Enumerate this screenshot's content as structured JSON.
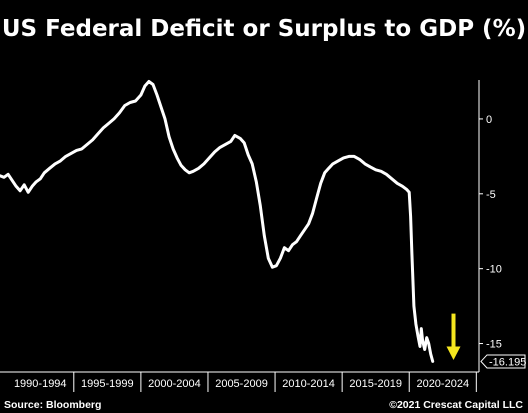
{
  "title": "US Federal Deficit or Surplus to GDP (%)",
  "source": "Source: Bloomberg",
  "copyright": "©2021 Crescat Capital LLC",
  "last_value_label": "-16.195",
  "colors": {
    "background": "#000000",
    "line": "#ffffff",
    "arrow": "#f5e61e",
    "text": "#ffffff"
  },
  "chart_data": {
    "type": "line",
    "title": "US Federal Deficit or Surplus to GDP (%)",
    "xlabel": "",
    "ylabel": "",
    "grid": false,
    "legend": "none",
    "xlim": [
      1989.5,
      2025.2
    ],
    "ylim": [
      -16.9,
      2.6
    ],
    "y_ticks": [
      0,
      -5,
      -10,
      -15
    ],
    "y_tick_labels": [
      "0",
      "-5",
      "-10",
      "-15"
    ],
    "x_categories": [
      "1990-1994",
      "1995-1999",
      "2000-2004",
      "2005-2009",
      "2010-2014",
      "2015-2019",
      "2020-2024"
    ],
    "annotations": [
      {
        "type": "arrow",
        "x": 2023.3,
        "direction": "down",
        "color": "#f5e61e"
      },
      {
        "type": "value-tag",
        "text": "-16.195",
        "y": -16.195
      }
    ],
    "series": [
      {
        "color": "#ffffff",
        "points": [
          [
            1989.5,
            -3.8
          ],
          [
            1989.8,
            -3.9
          ],
          [
            1990.1,
            -3.7
          ],
          [
            1990.4,
            -4.1
          ],
          [
            1990.7,
            -4.5
          ],
          [
            1991.0,
            -4.8
          ],
          [
            1991.3,
            -4.4
          ],
          [
            1991.6,
            -4.9
          ],
          [
            1991.9,
            -4.5
          ],
          [
            1992.2,
            -4.2
          ],
          [
            1992.5,
            -4.0
          ],
          [
            1992.8,
            -3.6
          ],
          [
            1993.2,
            -3.3
          ],
          [
            1993.6,
            -3.0
          ],
          [
            1994.0,
            -2.8
          ],
          [
            1994.4,
            -2.5
          ],
          [
            1994.8,
            -2.3
          ],
          [
            1995.2,
            -2.1
          ],
          [
            1995.6,
            -2.0
          ],
          [
            1996.0,
            -1.7
          ],
          [
            1996.4,
            -1.4
          ],
          [
            1996.8,
            -1.0
          ],
          [
            1997.2,
            -0.6
          ],
          [
            1997.6,
            -0.3
          ],
          [
            1998.0,
            0.0
          ],
          [
            1998.4,
            0.4
          ],
          [
            1998.8,
            0.9
          ],
          [
            1999.2,
            1.1
          ],
          [
            1999.6,
            1.2
          ],
          [
            2000.0,
            1.6
          ],
          [
            2000.3,
            2.2
          ],
          [
            2000.6,
            2.5
          ],
          [
            2000.9,
            2.3
          ],
          [
            2001.2,
            1.6
          ],
          [
            2001.5,
            0.8
          ],
          [
            2001.8,
            0.0
          ],
          [
            2002.1,
            -1.2
          ],
          [
            2002.4,
            -2.0
          ],
          [
            2002.7,
            -2.6
          ],
          [
            2003.0,
            -3.1
          ],
          [
            2003.3,
            -3.4
          ],
          [
            2003.6,
            -3.6
          ],
          [
            2003.9,
            -3.5
          ],
          [
            2004.3,
            -3.3
          ],
          [
            2004.7,
            -3.0
          ],
          [
            2005.1,
            -2.6
          ],
          [
            2005.5,
            -2.2
          ],
          [
            2005.9,
            -1.9
          ],
          [
            2006.3,
            -1.7
          ],
          [
            2006.7,
            -1.5
          ],
          [
            2007.0,
            -1.1
          ],
          [
            2007.4,
            -1.3
          ],
          [
            2007.7,
            -1.6
          ],
          [
            2008.0,
            -2.4
          ],
          [
            2008.3,
            -3.0
          ],
          [
            2008.6,
            -4.2
          ],
          [
            2008.9,
            -5.8
          ],
          [
            2009.2,
            -7.8
          ],
          [
            2009.5,
            -9.3
          ],
          [
            2009.8,
            -9.9
          ],
          [
            2010.1,
            -9.8
          ],
          [
            2010.4,
            -9.3
          ],
          [
            2010.7,
            -8.6
          ],
          [
            2011.0,
            -8.8
          ],
          [
            2011.3,
            -8.4
          ],
          [
            2011.6,
            -8.2
          ],
          [
            2011.9,
            -7.8
          ],
          [
            2012.2,
            -7.4
          ],
          [
            2012.5,
            -7.0
          ],
          [
            2012.8,
            -6.3
          ],
          [
            2013.1,
            -5.3
          ],
          [
            2013.4,
            -4.3
          ],
          [
            2013.7,
            -3.6
          ],
          [
            2014.0,
            -3.3
          ],
          [
            2014.3,
            -3.0
          ],
          [
            2014.7,
            -2.8
          ],
          [
            2015.1,
            -2.6
          ],
          [
            2015.5,
            -2.5
          ],
          [
            2015.9,
            -2.5
          ],
          [
            2016.3,
            -2.7
          ],
          [
            2016.7,
            -3.0
          ],
          [
            2017.1,
            -3.2
          ],
          [
            2017.5,
            -3.4
          ],
          [
            2017.9,
            -3.5
          ],
          [
            2018.3,
            -3.7
          ],
          [
            2018.7,
            -4.0
          ],
          [
            2019.1,
            -4.3
          ],
          [
            2019.5,
            -4.5
          ],
          [
            2019.8,
            -4.7
          ],
          [
            2020.0,
            -4.9
          ],
          [
            2020.1,
            -6.5
          ],
          [
            2020.2,
            -9.0
          ],
          [
            2020.35,
            -12.5
          ],
          [
            2020.5,
            -13.7
          ],
          [
            2020.65,
            -14.5
          ],
          [
            2020.8,
            -15.2
          ],
          [
            2020.9,
            -14.0
          ],
          [
            2021.0,
            -14.8
          ],
          [
            2021.15,
            -15.4
          ],
          [
            2021.3,
            -14.6
          ],
          [
            2021.45,
            -15.0
          ],
          [
            2021.6,
            -15.7
          ],
          [
            2021.75,
            -16.195
          ]
        ]
      }
    ]
  }
}
